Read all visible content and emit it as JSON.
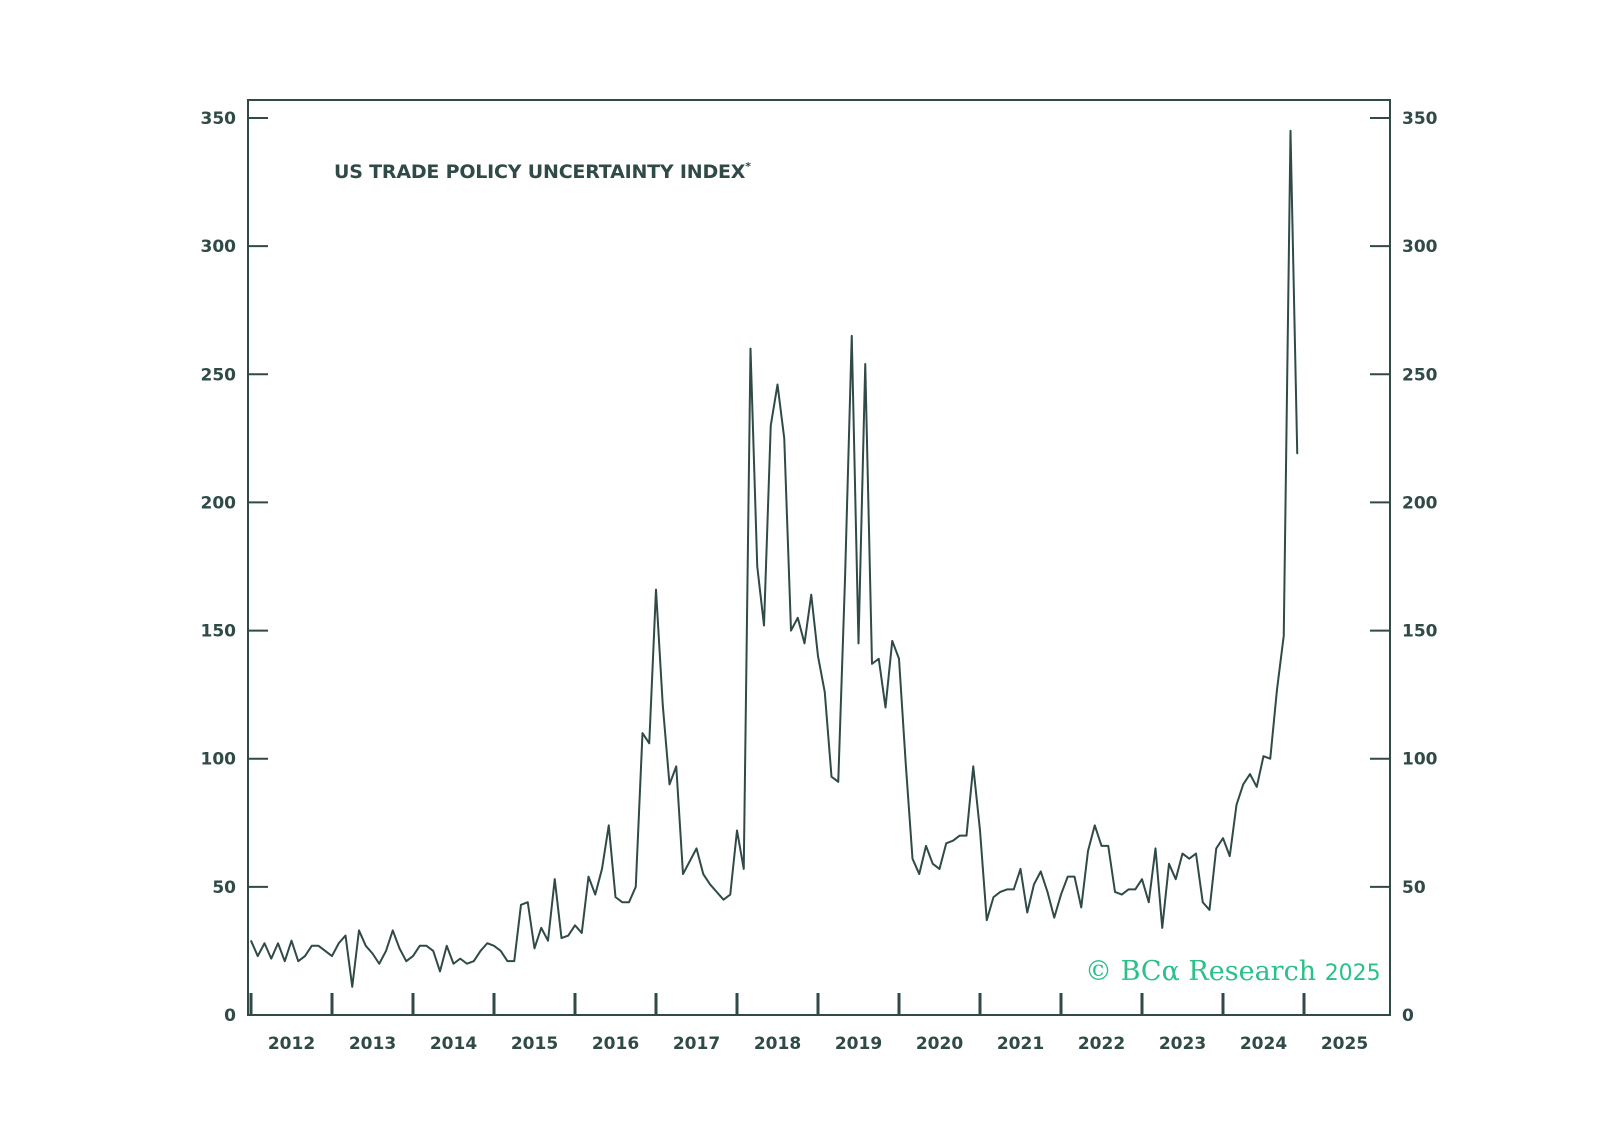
{
  "chart_data": {
    "type": "line",
    "title": "US TRADE POLICY UNCERTAINTY INDEX",
    "title_marker": "*",
    "xlabel": "",
    "ylabel": "",
    "ylim": [
      0,
      350
    ],
    "yticks": [
      0,
      50,
      100,
      150,
      200,
      250,
      300,
      350
    ],
    "ytick_labels": [
      "0",
      "50",
      "100",
      "150",
      "200",
      "250",
      "300",
      "350"
    ],
    "x_tick_labels": [
      "2012",
      "2013",
      "2014",
      "2015",
      "2016",
      "2017",
      "2018",
      "2019",
      "2020",
      "2021",
      "2022",
      "2023",
      "2024",
      "2025"
    ],
    "x_start": "2012-01",
    "grid": false,
    "axes": "left and right",
    "line_color": "#2f4a47",
    "series": [
      {
        "name": "",
        "values": [
          29,
          23,
          28,
          22,
          28,
          21,
          29,
          21,
          23,
          27,
          27,
          25,
          23,
          28,
          31,
          11,
          33,
          27,
          24,
          20,
          25,
          33,
          26,
          21,
          23,
          27,
          27,
          25,
          17,
          27,
          20,
          22,
          20,
          21,
          25,
          28,
          27,
          25,
          21,
          21,
          43,
          44,
          26,
          34,
          29,
          53,
          30,
          31,
          35,
          32,
          54,
          47,
          57,
          74,
          46,
          44,
          44,
          50,
          110,
          106,
          166,
          121,
          90,
          97,
          55,
          60,
          65,
          55,
          51,
          48,
          45,
          47,
          72,
          57,
          260,
          175,
          152,
          230,
          246,
          225,
          150,
          155,
          145,
          164,
          140,
          126,
          93,
          91,
          170,
          265,
          145,
          254,
          137,
          139,
          120,
          146,
          139,
          98,
          61,
          55,
          66,
          59,
          57,
          67,
          68,
          70,
          70,
          97,
          72,
          37,
          46,
          48,
          49,
          49,
          57,
          40,
          51,
          56,
          48,
          38,
          47,
          54,
          54,
          42,
          64,
          74,
          66,
          66,
          48,
          47,
          49,
          49,
          53,
          44,
          65,
          34,
          59,
          53,
          63,
          61,
          63,
          44,
          41,
          65,
          69,
          62,
          82,
          90,
          94,
          89,
          101,
          100,
          127,
          148,
          345,
          219
        ]
      }
    ]
  },
  "watermark": {
    "copyright": "©",
    "brand": "BCα",
    "word": "Research",
    "year": "2025"
  }
}
